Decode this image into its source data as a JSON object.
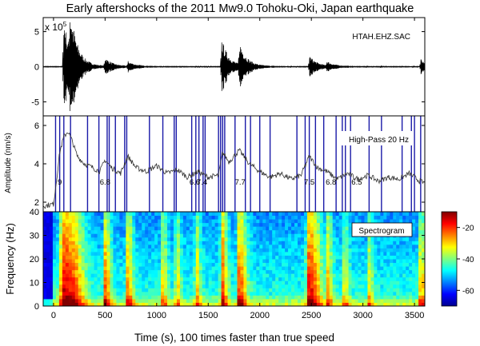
{
  "title": "Early aftershocks of the 2011 Mw9.0 Tohoku-Oki, Japan earthquake",
  "chart_data": [
    {
      "type": "line",
      "panel": "waveform",
      "label": "HTAH.EHZ.SAC",
      "scale_label": "x 10",
      "scale_exponent": "5",
      "ylim": [
        -7,
        7
      ],
      "yticks": [
        -5,
        0,
        5
      ],
      "xlim": [
        -100,
        3600
      ],
      "line_color": "#000000",
      "events": [
        {
          "t": 100,
          "amp": 7.0
        },
        {
          "t": 160,
          "amp": 6.0
        },
        {
          "t": 500,
          "amp": 1.2
        },
        {
          "t": 720,
          "amp": 0.7
        },
        {
          "t": 1630,
          "amp": 4.0
        },
        {
          "t": 1800,
          "amp": 3.4
        },
        {
          "t": 2480,
          "amp": 1.6
        },
        {
          "t": 2650,
          "amp": 0.6
        },
        {
          "t": 3560,
          "amp": 1.0
        }
      ]
    },
    {
      "type": "line",
      "panel": "high-pass",
      "label": "High-Pass 20 Hz",
      "ylabel": "Amplitude (nm/s)",
      "ylim": [
        1.5,
        6.5
      ],
      "yticks": [
        2,
        4,
        6
      ],
      "xlim": [
        -100,
        3600
      ],
      "line_color": "#333333",
      "marker_color": "#1a1aa8",
      "envelope": [
        {
          "t": -100,
          "v": 1.8
        },
        {
          "t": 0,
          "v": 1.9
        },
        {
          "t": 30,
          "v": 3.2
        },
        {
          "t": 60,
          "v": 4.6
        },
        {
          "t": 100,
          "v": 5.4
        },
        {
          "t": 140,
          "v": 5.7
        },
        {
          "t": 180,
          "v": 5.2
        },
        {
          "t": 230,
          "v": 4.4
        },
        {
          "t": 300,
          "v": 4.0
        },
        {
          "t": 380,
          "v": 3.8
        },
        {
          "t": 450,
          "v": 3.6
        },
        {
          "t": 500,
          "v": 4.2
        },
        {
          "t": 560,
          "v": 3.8
        },
        {
          "t": 650,
          "v": 3.5
        },
        {
          "t": 720,
          "v": 4.4
        },
        {
          "t": 800,
          "v": 3.8
        },
        {
          "t": 900,
          "v": 3.6
        },
        {
          "t": 1000,
          "v": 3.9
        },
        {
          "t": 1100,
          "v": 3.5
        },
        {
          "t": 1200,
          "v": 3.7
        },
        {
          "t": 1300,
          "v": 3.3
        },
        {
          "t": 1400,
          "v": 3.6
        },
        {
          "t": 1500,
          "v": 3.3
        },
        {
          "t": 1600,
          "v": 3.4
        },
        {
          "t": 1640,
          "v": 4.6
        },
        {
          "t": 1700,
          "v": 4.1
        },
        {
          "t": 1800,
          "v": 4.7
        },
        {
          "t": 1900,
          "v": 4.0
        },
        {
          "t": 2000,
          "v": 3.6
        },
        {
          "t": 2100,
          "v": 3.3
        },
        {
          "t": 2200,
          "v": 3.5
        },
        {
          "t": 2300,
          "v": 3.2
        },
        {
          "t": 2400,
          "v": 3.4
        },
        {
          "t": 2480,
          "v": 4.4
        },
        {
          "t": 2560,
          "v": 3.8
        },
        {
          "t": 2650,
          "v": 3.6
        },
        {
          "t": 2750,
          "v": 3.2
        },
        {
          "t": 2850,
          "v": 3.5
        },
        {
          "t": 2950,
          "v": 3.2
        },
        {
          "t": 3050,
          "v": 3.4
        },
        {
          "t": 3150,
          "v": 3.1
        },
        {
          "t": 3250,
          "v": 3.3
        },
        {
          "t": 3350,
          "v": 3.2
        },
        {
          "t": 3450,
          "v": 3.5
        },
        {
          "t": 3550,
          "v": 3.1
        },
        {
          "t": 3600,
          "v": 3.0
        }
      ],
      "markers": [
        20,
        60,
        100,
        165,
        330,
        440,
        520,
        540,
        600,
        690,
        710,
        930,
        1060,
        1170,
        1190,
        1340,
        1380,
        1410,
        1450,
        1470,
        1600,
        1620,
        1640,
        1660,
        1760,
        1860,
        1910,
        2000,
        2100,
        2360,
        2440,
        2480,
        2540,
        2620,
        2740,
        2800,
        2830,
        2880,
        3060,
        3180,
        3380,
        3470,
        3500,
        3560
      ],
      "magnitudes": [
        {
          "t": 60,
          "label": "9"
        },
        {
          "t": 500,
          "label": "6.8"
        },
        {
          "t": 1370,
          "label": "6.6"
        },
        {
          "t": 1440,
          "label": "7.4"
        },
        {
          "t": 1810,
          "label": "7.7"
        },
        {
          "t": 2480,
          "label": "7.5"
        },
        {
          "t": 2690,
          "label": "6.8"
        },
        {
          "t": 2940,
          "label": "6.5"
        }
      ]
    },
    {
      "type": "heatmap",
      "panel": "spectrogram",
      "label": "Spectrogram",
      "ylabel": "Frequency (Hz)",
      "xlabel": "Time (s), 100 times faster than true speed",
      "ylim": [
        0,
        40
      ],
      "yticks": [
        0,
        10,
        20,
        30,
        40
      ],
      "xlim": [
        -100,
        3600
      ],
      "xticks": [
        0,
        500,
        1000,
        1500,
        2000,
        2500,
        3000,
        3500
      ],
      "colorbar": {
        "range": [
          -70,
          -10
        ],
        "ticks": [
          -20,
          -40,
          -60
        ],
        "colormap": "jet"
      },
      "bursts": [
        {
          "t": 100,
          "strength": 1.0,
          "width": 70
        },
        {
          "t": 160,
          "strength": 0.9,
          "width": 60
        },
        {
          "t": 500,
          "strength": 0.75,
          "width": 25
        },
        {
          "t": 720,
          "strength": 0.65,
          "width": 25
        },
        {
          "t": 1060,
          "strength": 0.5,
          "width": 20
        },
        {
          "t": 1190,
          "strength": 0.55,
          "width": 20
        },
        {
          "t": 1380,
          "strength": 0.55,
          "width": 22
        },
        {
          "t": 1630,
          "strength": 0.85,
          "width": 25
        },
        {
          "t": 1800,
          "strength": 0.8,
          "width": 35
        },
        {
          "t": 2480,
          "strength": 0.95,
          "width": 50
        },
        {
          "t": 2650,
          "strength": 0.6,
          "width": 25
        },
        {
          "t": 2820,
          "strength": 0.5,
          "width": 20
        },
        {
          "t": 3060,
          "strength": 0.45,
          "width": 20
        },
        {
          "t": 3560,
          "strength": 0.6,
          "width": 25
        }
      ]
    }
  ]
}
